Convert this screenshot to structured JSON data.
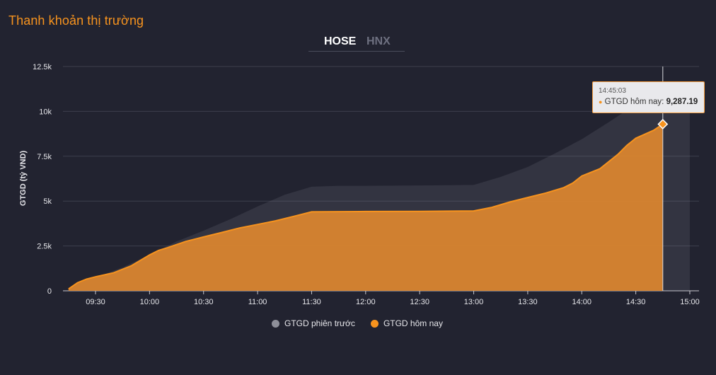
{
  "panel": {
    "title": "Thanh khoản thị trường"
  },
  "tabs": [
    {
      "label": "HOSE",
      "active": true
    },
    {
      "label": "HNX",
      "active": false
    }
  ],
  "colors": {
    "today": "#f7931e",
    "previous": "#8e8f99",
    "background": "#222330"
  },
  "tooltip": {
    "time": "14:45:03",
    "series_label": "GTGD hôm nay",
    "value": "9,287.19"
  },
  "legend": [
    {
      "label": "GTGD phiên trước",
      "color": "#8e8f99"
    },
    {
      "label": "GTGD hôm nay",
      "color": "#f7931e"
    }
  ],
  "chart_data": {
    "type": "area",
    "ylabel": "GTGD (tỷ VND)",
    "xlabel": "",
    "ylim": [
      0,
      12500
    ],
    "yticks": [
      0,
      2500,
      5000,
      7500,
      10000,
      12500
    ],
    "ytick_labels": [
      "0",
      "2.5k",
      "5k",
      "7.5k",
      "10k",
      "12.5k"
    ],
    "xticks": [
      "09:30",
      "10:00",
      "10:30",
      "11:00",
      "11:30",
      "12:00",
      "12:30",
      "13:00",
      "13:30",
      "14:00",
      "14:30",
      "15:00"
    ],
    "grid": true,
    "legend_position": "bottom",
    "series": [
      {
        "name": "GTGD phiên trước",
        "points": [
          [
            "09:15",
            0
          ],
          [
            "09:20",
            350
          ],
          [
            "09:30",
            750
          ],
          [
            "09:45",
            1300
          ],
          [
            "10:00",
            2000
          ],
          [
            "10:15",
            2750
          ],
          [
            "10:30",
            3350
          ],
          [
            "10:45",
            4000
          ],
          [
            "11:00",
            4700
          ],
          [
            "11:15",
            5350
          ],
          [
            "11:30",
            5800
          ],
          [
            "11:45",
            5850
          ],
          [
            "12:00",
            5850
          ],
          [
            "12:30",
            5870
          ],
          [
            "13:00",
            5900
          ],
          [
            "13:15",
            6350
          ],
          [
            "13:30",
            6900
          ],
          [
            "13:45",
            7650
          ],
          [
            "14:00",
            8450
          ],
          [
            "14:15",
            9400
          ],
          [
            "14:30",
            10400
          ],
          [
            "14:45",
            11000
          ],
          [
            "15:00",
            11100
          ]
        ]
      },
      {
        "name": "GTGD hôm nay",
        "points": [
          [
            "09:15",
            100
          ],
          [
            "09:20",
            450
          ],
          [
            "09:25",
            650
          ],
          [
            "09:30",
            780
          ],
          [
            "09:40",
            1000
          ],
          [
            "09:50",
            1400
          ],
          [
            "10:00",
            2000
          ],
          [
            "10:05",
            2250
          ],
          [
            "10:10",
            2400
          ],
          [
            "10:20",
            2750
          ],
          [
            "10:30",
            3000
          ],
          [
            "10:40",
            3250
          ],
          [
            "10:50",
            3500
          ],
          [
            "11:00",
            3700
          ],
          [
            "11:10",
            3900
          ],
          [
            "11:20",
            4150
          ],
          [
            "11:30",
            4400
          ],
          [
            "12:00",
            4420
          ],
          [
            "12:30",
            4430
          ],
          [
            "13:00",
            4450
          ],
          [
            "13:10",
            4650
          ],
          [
            "13:20",
            4950
          ],
          [
            "13:30",
            5200
          ],
          [
            "13:40",
            5450
          ],
          [
            "13:50",
            5750
          ],
          [
            "13:55",
            6000
          ],
          [
            "14:00",
            6400
          ],
          [
            "14:10",
            6800
          ],
          [
            "14:20",
            7600
          ],
          [
            "14:25",
            8100
          ],
          [
            "14:30",
            8500
          ],
          [
            "14:40",
            8950
          ],
          [
            "14:45",
            9287.19
          ]
        ]
      }
    ]
  }
}
